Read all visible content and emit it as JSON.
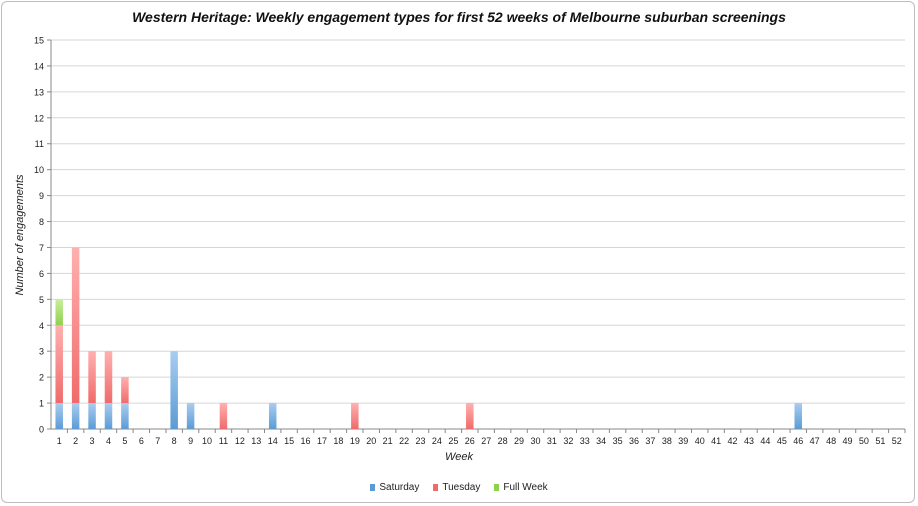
{
  "chart_data": {
    "type": "bar",
    "stacked": true,
    "title": "Western Heritage: Weekly engagement types for first 52 weeks of Melbourne suburban screenings",
    "xlabel": "Week",
    "ylabel": "Number of engagements",
    "ylim": [
      0,
      15
    ],
    "yticks": [
      "0",
      "1",
      "2",
      "3",
      "4",
      "5",
      "6",
      "7",
      "8",
      "9",
      "10",
      "11",
      "12",
      "13",
      "14",
      "15"
    ],
    "grid": true,
    "legend_position": "bottom",
    "categories": [
      "1",
      "2",
      "3",
      "4",
      "5",
      "6",
      "7",
      "8",
      "9",
      "10",
      "11",
      "12",
      "13",
      "14",
      "15",
      "16",
      "17",
      "18",
      "19",
      "20",
      "21",
      "22",
      "23",
      "24",
      "25",
      "26",
      "27",
      "28",
      "29",
      "30",
      "31",
      "32",
      "33",
      "34",
      "35",
      "36",
      "37",
      "38",
      "39",
      "40",
      "41",
      "42",
      "43",
      "44",
      "45",
      "46",
      "47",
      "48",
      "49",
      "50",
      "51",
      "52"
    ],
    "series": [
      {
        "name": "Saturday",
        "color": "#5b9bd5",
        "values": [
          1,
          1,
          1,
          1,
          1,
          0,
          0,
          3,
          1,
          0,
          0,
          0,
          0,
          1,
          0,
          0,
          0,
          0,
          0,
          0,
          0,
          0,
          0,
          0,
          0,
          0,
          0,
          0,
          0,
          0,
          0,
          0,
          0,
          0,
          0,
          0,
          0,
          0,
          0,
          0,
          0,
          0,
          0,
          0,
          0,
          1,
          0,
          0,
          0,
          0,
          0,
          0
        ]
      },
      {
        "name": "Tuesday",
        "color": "#f06b6b",
        "values": [
          3,
          6,
          2,
          2,
          1,
          0,
          0,
          0,
          0,
          0,
          1,
          0,
          0,
          0,
          0,
          0,
          0,
          0,
          1,
          0,
          0,
          0,
          0,
          0,
          0,
          1,
          0,
          0,
          0,
          0,
          0,
          0,
          0,
          0,
          0,
          0,
          0,
          0,
          0,
          0,
          0,
          0,
          0,
          0,
          0,
          0,
          0,
          0,
          0,
          0,
          0,
          0
        ]
      },
      {
        "name": "Full Week",
        "color": "#8fd14f",
        "values": [
          1,
          0,
          0,
          0,
          0,
          0,
          0,
          0,
          0,
          0,
          0,
          0,
          0,
          0,
          0,
          0,
          0,
          0,
          0,
          0,
          0,
          0,
          0,
          0,
          0,
          0,
          0,
          0,
          0,
          0,
          0,
          0,
          0,
          0,
          0,
          0,
          0,
          0,
          0,
          0,
          0,
          0,
          0,
          0,
          0,
          0,
          0,
          0,
          0,
          0,
          0,
          0
        ]
      }
    ]
  }
}
